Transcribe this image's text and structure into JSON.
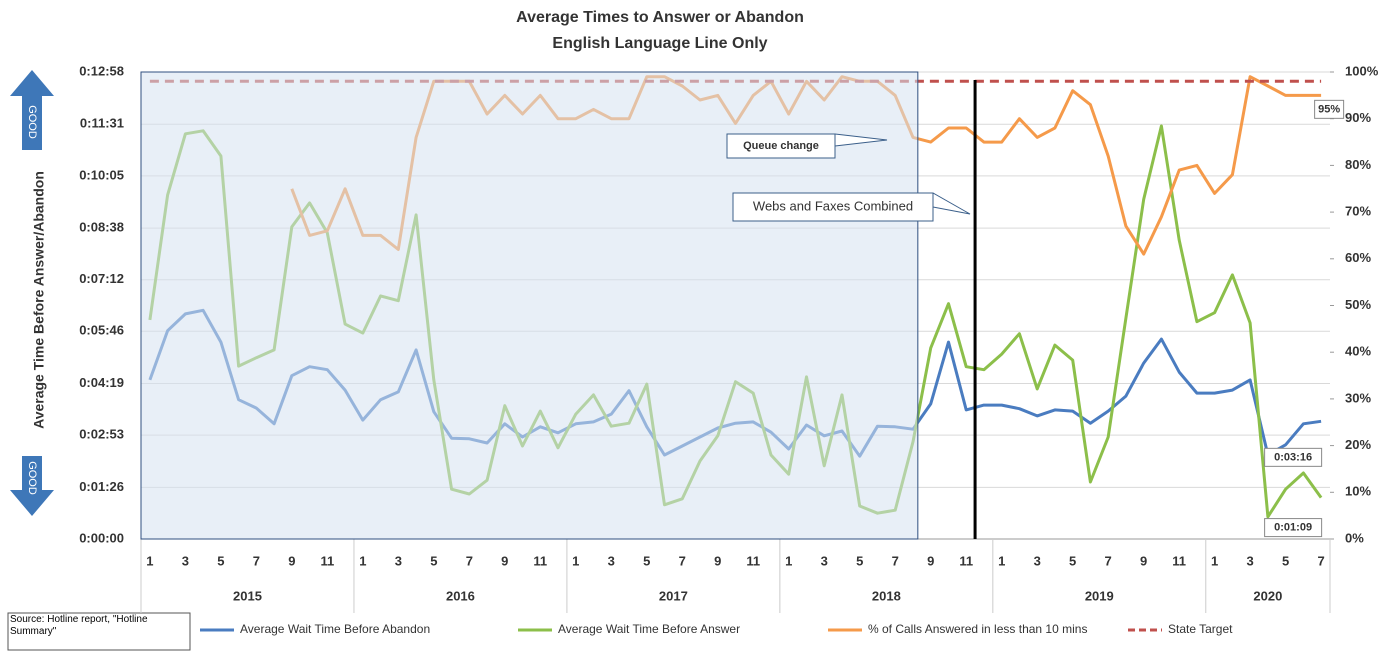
{
  "chart_data": {
    "type": "line",
    "title": "Average Times to Answer or Abandon",
    "subtitle": "English Language Line Only",
    "y_label": "Average Time Before Answer/Abandon",
    "arrow_labels": [
      "GOOD",
      "GOOD"
    ],
    "annotations": [
      "Queue change",
      "Webs and Faxes Combined"
    ],
    "source": "Source: Hotline report, \"Hotline Summary\"",
    "categories": [
      "1",
      null,
      "3",
      null,
      "5",
      null,
      "7",
      null,
      "9",
      null,
      "11",
      null,
      "1",
      null,
      "3",
      null,
      "5",
      null,
      "7",
      null,
      "9",
      null,
      "11",
      null,
      "1",
      null,
      "3",
      null,
      "5",
      null,
      "7",
      null,
      "9",
      null,
      "11",
      null,
      "1",
      null,
      "3",
      null,
      "5",
      null,
      "7",
      null,
      "9",
      null,
      "11",
      null,
      "1",
      null,
      "3",
      null,
      "5",
      null,
      "7",
      null,
      "9",
      null,
      "11",
      null,
      "1",
      null,
      "3",
      null,
      "5",
      null,
      "7"
    ],
    "years": [
      "2015",
      "2016",
      "2017",
      "2018",
      "2019",
      "2020"
    ],
    "ylim": [
      0,
      778
    ],
    "yticks": [
      {
        "value": 0,
        "label": "0:00:00"
      },
      {
        "value": 86,
        "label": "0:01:26"
      },
      {
        "value": 173,
        "label": "0:02:53"
      },
      {
        "value": 259,
        "label": "0:04:19"
      },
      {
        "value": 346,
        "label": "0:05:46"
      },
      {
        "value": 432,
        "label": "0:07:12"
      },
      {
        "value": 518,
        "label": "0:08:38"
      },
      {
        "value": 605,
        "label": "0:10:05"
      },
      {
        "value": 691,
        "label": "0:11:31"
      },
      {
        "value": 778,
        "label": "0:12:58"
      }
    ],
    "y2lim": [
      0,
      100
    ],
    "y2ticks": [
      {
        "value": 0,
        "label": "0%"
      },
      {
        "value": 10,
        "label": "10%"
      },
      {
        "value": 20,
        "label": "20%"
      },
      {
        "value": 30,
        "label": "30%"
      },
      {
        "value": 40,
        "label": "40%"
      },
      {
        "value": 50,
        "label": "50%"
      },
      {
        "value": 60,
        "label": "60%"
      },
      {
        "value": 70,
        "label": "70%"
      },
      {
        "value": 80,
        "label": "80%"
      },
      {
        "value": 90,
        "label": "90%"
      },
      {
        "value": 100,
        "label": "100%"
      }
    ],
    "grid": true,
    "series": [
      {
        "name": "Average Wait Time Before Abandon",
        "color": "#4a7cc0",
        "values": [
          265,
          347,
          375,
          381,
          328,
          232,
          218,
          192,
          272,
          287,
          282,
          248,
          198,
          232,
          245,
          315,
          212,
          168,
          167,
          160,
          192,
          170,
          187,
          177,
          192,
          195,
          208,
          247,
          187,
          140,
          155,
          170,
          185,
          193,
          195,
          178,
          150,
          190,
          172,
          180,
          138,
          188,
          187,
          183,
          225,
          328,
          215,
          223,
          223,
          217,
          205,
          215,
          213,
          193,
          213,
          238,
          293,
          333,
          278,
          243,
          243,
          248,
          265,
          140,
          157,
          192,
          196
        ],
        "value_labels": [
          null,
          null,
          null,
          null,
          null,
          null,
          null,
          null,
          null,
          null,
          null,
          null,
          null,
          null,
          null,
          null,
          null,
          null,
          null,
          null,
          null,
          null,
          null,
          null,
          null,
          null,
          null,
          null,
          null,
          null,
          null,
          null,
          null,
          null,
          null,
          null,
          null,
          null,
          null,
          null,
          null,
          null,
          null,
          null,
          null,
          null,
          null,
          null,
          null,
          null,
          null,
          null,
          null,
          null,
          null,
          null,
          null,
          null,
          null,
          null,
          null,
          null,
          null,
          null,
          null,
          null,
          "0:03:16"
        ]
      },
      {
        "name": "Average Wait Time Before Answer",
        "color": "#8cbf4a",
        "values": [
          365,
          573,
          675,
          680,
          638,
          288,
          302,
          315,
          520,
          560,
          510,
          358,
          343,
          405,
          397,
          540,
          265,
          83,
          75,
          98,
          222,
          155,
          213,
          152,
          208,
          240,
          188,
          193,
          258,
          57,
          67,
          130,
          172,
          262,
          243,
          140,
          108,
          270,
          122,
          240,
          55,
          43,
          48,
          162,
          318,
          392,
          287,
          282,
          308,
          342,
          250,
          323,
          298,
          95,
          170,
          368,
          566,
          688,
          498,
          362,
          377,
          440,
          360,
          37,
          83,
          110,
          69
        ],
        "value_labels": [
          null,
          null,
          null,
          null,
          null,
          null,
          null,
          null,
          null,
          null,
          null,
          null,
          null,
          null,
          null,
          null,
          null,
          null,
          null,
          null,
          null,
          null,
          null,
          null,
          null,
          null,
          null,
          null,
          null,
          null,
          null,
          null,
          null,
          null,
          null,
          null,
          null,
          null,
          null,
          null,
          null,
          null,
          null,
          null,
          null,
          null,
          null,
          null,
          null,
          null,
          null,
          null,
          null,
          null,
          null,
          null,
          null,
          null,
          null,
          null,
          null,
          null,
          null,
          null,
          null,
          null,
          "0:01:09"
        ]
      },
      {
        "name": "% of Calls Answered in less than 10 mins",
        "color": "#f59a4a",
        "axis": "y2",
        "values": [
          null,
          null,
          null,
          null,
          null,
          null,
          null,
          null,
          75,
          65,
          66,
          75,
          65,
          65,
          62,
          86,
          98,
          98,
          98,
          91,
          95,
          91,
          95,
          90,
          90,
          92,
          90,
          90,
          99,
          99,
          97,
          94,
          95,
          89,
          95,
          98,
          91,
          98,
          94,
          99,
          98,
          98,
          95,
          86,
          85,
          88,
          88,
          85,
          85,
          90,
          86,
          88,
          96,
          93,
          82,
          67,
          61,
          69,
          79,
          80,
          74,
          78,
          99,
          97,
          95,
          95,
          95
        ],
        "value_labels": [
          null,
          null,
          null,
          null,
          null,
          null,
          null,
          null,
          null,
          null,
          null,
          null,
          null,
          null,
          null,
          null,
          null,
          null,
          null,
          null,
          null,
          null,
          null,
          null,
          null,
          null,
          null,
          null,
          null,
          null,
          null,
          null,
          null,
          null,
          null,
          null,
          null,
          null,
          null,
          null,
          null,
          null,
          null,
          null,
          null,
          null,
          null,
          null,
          null,
          null,
          null,
          null,
          null,
          null,
          null,
          null,
          null,
          null,
          null,
          null,
          null,
          null,
          null,
          null,
          null,
          null,
          "95%"
        ]
      },
      {
        "name": "State Target",
        "color": "#c0504d",
        "axis": "y2",
        "dashed": true,
        "values": [
          98,
          98,
          98,
          98,
          98,
          98,
          98,
          98,
          98,
          98,
          98,
          98,
          98,
          98,
          98,
          98,
          98,
          98,
          98,
          98,
          98,
          98,
          98,
          98,
          98,
          98,
          98,
          98,
          98,
          98,
          98,
          98,
          98,
          98,
          98,
          98,
          98,
          98,
          98,
          98,
          98,
          98,
          98,
          98,
          98,
          98,
          98,
          98,
          98,
          98,
          98,
          98,
          98,
          98,
          98,
          98,
          98,
          98,
          98,
          98,
          98,
          98,
          98,
          98,
          98,
          98,
          98
        ]
      }
    ]
  }
}
